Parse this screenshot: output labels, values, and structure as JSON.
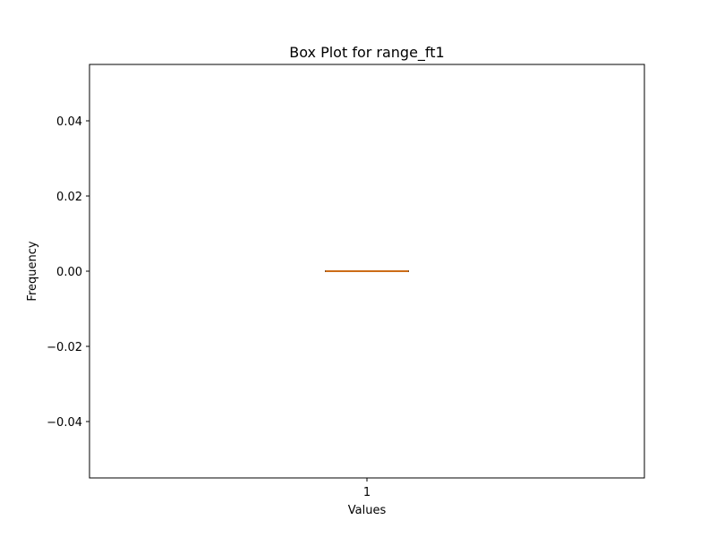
{
  "chart_data": {
    "type": "box",
    "title": "Box Plot for range_ft1",
    "xlabel": "Values",
    "ylabel": "Frequency",
    "categories": [
      "1"
    ],
    "ylim": [
      -0.055,
      0.055
    ],
    "yticks": [
      -0.04,
      -0.02,
      0.0,
      0.02,
      0.04
    ],
    "ytick_labels": [
      "−0.04",
      "−0.02",
      "0.00",
      "0.02",
      "0.04"
    ],
    "boxes": [
      {
        "category": "1",
        "min": 0.0,
        "q1": 0.0,
        "median": 0.0,
        "q3": 0.0,
        "max": 0.0
      }
    ],
    "grid": false,
    "colors": {
      "box": "#1f77b4",
      "median": "#ff7f0e",
      "axes": "#000000"
    }
  }
}
